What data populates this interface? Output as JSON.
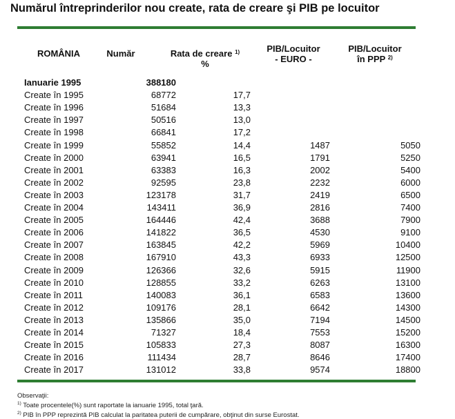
{
  "title": "Numărul întreprinderilor  nou create, rata de creare şi PIB pe locuitor",
  "headers": {
    "romania": "ROMÂNIA",
    "numar": "Număr",
    "rata_line1": "Rata de creare",
    "rata_sup": "1)",
    "rata_line2": "%",
    "pib_eur_line1": "PIB/Locuitor",
    "pib_eur_line2": "- EURO -",
    "pib_ppp_line1": "PIB/Locuitor",
    "pib_ppp_line2": "în PPP",
    "pib_ppp_sup": "2)"
  },
  "rows": [
    {
      "label": "Ianuarie 1995",
      "numar": "388180",
      "rata": "",
      "eur": "",
      "ppp": ""
    },
    {
      "label": "Create în 1995",
      "numar": "68772",
      "rata": "17,7",
      "eur": "",
      "ppp": ""
    },
    {
      "label": "Create în 1996",
      "numar": "51684",
      "rata": "13,3",
      "eur": "",
      "ppp": ""
    },
    {
      "label": "Create în 1997",
      "numar": "50516",
      "rata": "13,0",
      "eur": "",
      "ppp": ""
    },
    {
      "label": "Create în 1998",
      "numar": "66841",
      "rata": "17,2",
      "eur": "",
      "ppp": ""
    },
    {
      "label": "Create în 1999",
      "numar": "55852",
      "rata": "14,4",
      "eur": "1487",
      "ppp": "5050"
    },
    {
      "label": "Create în 2000",
      "numar": "63941",
      "rata": "16,5",
      "eur": "1791",
      "ppp": "5250"
    },
    {
      "label": "Create în 2001",
      "numar": "63383",
      "rata": "16,3",
      "eur": "2002",
      "ppp": "5400"
    },
    {
      "label": "Create în 2002",
      "numar": "92595",
      "rata": "23,8",
      "eur": "2232",
      "ppp": "6000"
    },
    {
      "label": "Create în 2003",
      "numar": "123178",
      "rata": "31,7",
      "eur": "2419",
      "ppp": "6500"
    },
    {
      "label": "Create în 2004",
      "numar": "143411",
      "rata": "36,9",
      "eur": "2816",
      "ppp": "7400"
    },
    {
      "label": "Create în 2005",
      "numar": "164446",
      "rata": "42,4",
      "eur": "3688",
      "ppp": "7900"
    },
    {
      "label": "Create în 2006",
      "numar": "141822",
      "rata": "36,5",
      "eur": "4530",
      "ppp": "9100"
    },
    {
      "label": "Create în 2007",
      "numar": "163845",
      "rata": "42,2",
      "eur": "5969",
      "ppp": "10400"
    },
    {
      "label": "Create în 2008",
      "numar": "167910",
      "rata": "43,3",
      "eur": "6933",
      "ppp": "12500"
    },
    {
      "label": "Create în 2009",
      "numar": "126366",
      "rata": "32,6",
      "eur": "5915",
      "ppp": "11900"
    },
    {
      "label": "Create în 2010",
      "numar": "128855",
      "rata": "33,2",
      "eur": "6263",
      "ppp": "13100"
    },
    {
      "label": "Create în 2011",
      "numar": "140083",
      "rata": "36,1",
      "eur": "6583",
      "ppp": "13600"
    },
    {
      "label": "Create în 2012",
      "numar": "109176",
      "rata": "28,1",
      "eur": "6642",
      "ppp": "14300"
    },
    {
      "label": "Create în 2013",
      "numar": "135866",
      "rata": "35,0",
      "eur": "7194",
      "ppp": "14500"
    },
    {
      "label": "Create în 2014",
      "numar": "71327",
      "rata": "18,4",
      "eur": "7553",
      "ppp": "15200"
    },
    {
      "label": "Create în 2015",
      "numar": "105833",
      "rata": "27,3",
      "eur": "8087",
      "ppp": "16300"
    },
    {
      "label": "Create în 2016",
      "numar": "111434",
      "rata": "28,7",
      "eur": "8646",
      "ppp": "17400"
    },
    {
      "label": "Create în 2017",
      "numar": "131012",
      "rata": "33,8",
      "eur": "9574",
      "ppp": "18800"
    }
  ],
  "notes": {
    "heading": "Observaţii:",
    "note1_sup": "1)",
    "note1": " Toate procentele(%) sunt raportate la ianuarie 1995, total ţară.",
    "note2_sup": "2)",
    "note2": " PIB în PPP reprezintă PIB calculat la paritatea puterii de cumpărare, obţinut din surse Eurostat."
  },
  "colors": {
    "rule": "#2e7d32"
  }
}
